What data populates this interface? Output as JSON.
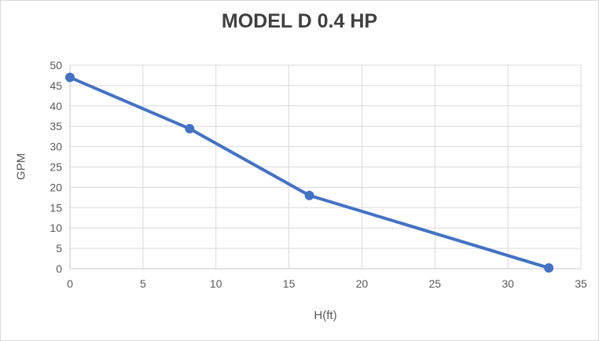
{
  "window": {
    "background_color": "#ffffff",
    "border_color": "#d9d9d9"
  },
  "chart_data": {
    "type": "line",
    "title": "MODEL D 0.4 HP",
    "xlabel": "H(ft)",
    "ylabel": "GPM",
    "series": [
      {
        "name": "MODEL D 0.4 HP",
        "points": [
          {
            "x": 0,
            "y": 47.0
          },
          {
            "x": 8.2,
            "y": 34.4
          },
          {
            "x": 16.4,
            "y": 18.0
          },
          {
            "x": 32.8,
            "y": 0.2
          }
        ]
      }
    ],
    "xlim": [
      0,
      35
    ],
    "ylim": [
      0,
      50
    ],
    "x_ticks": [
      0,
      5,
      10,
      15,
      20,
      25,
      30,
      35
    ],
    "y_ticks": [
      0,
      5,
      10,
      15,
      20,
      25,
      30,
      35,
      40,
      45,
      50
    ],
    "grid": true,
    "legend_position": "none",
    "line_color": "#4472c4",
    "marker_shape": "circle",
    "gridline_color": "#d9d9d9",
    "axis_line_color": "#c9c9c9",
    "tick_label_color": "#595959",
    "title_color": "#3f3f3f"
  }
}
